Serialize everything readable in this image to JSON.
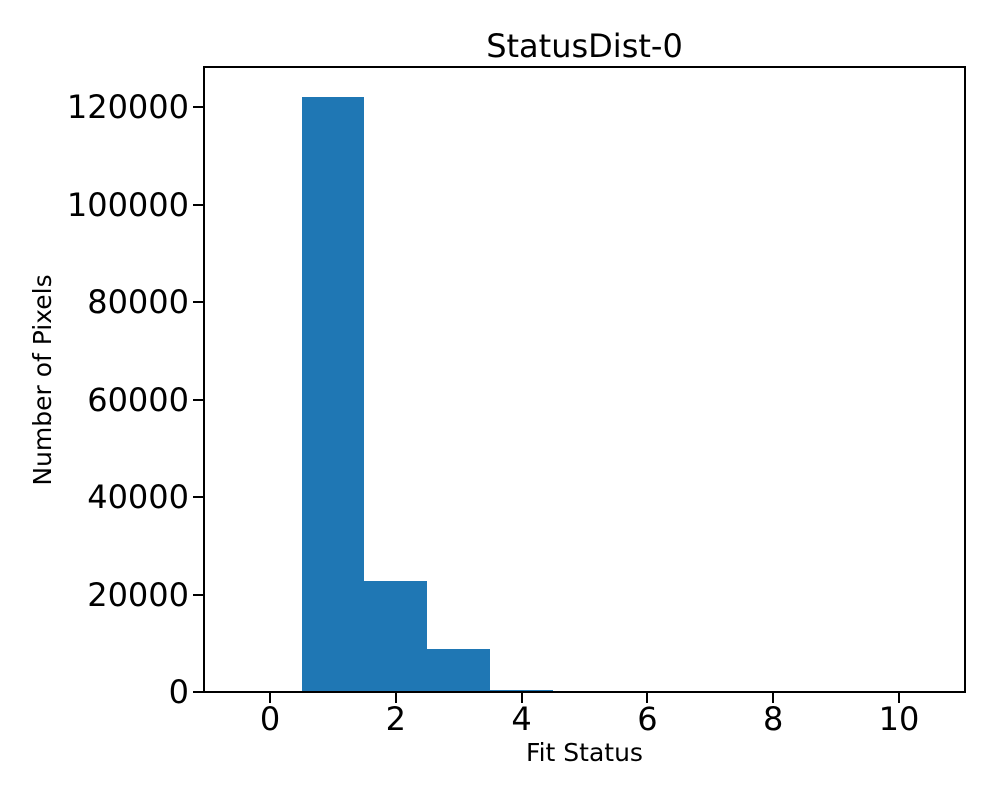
{
  "figure": {
    "background": "#ffffff",
    "text_color": "#000000"
  },
  "chart_data": {
    "type": "bar",
    "subtype": "histogram",
    "title": "StatusDist-0",
    "xlabel": "Fit Status",
    "ylabel": "Number of Pixels",
    "bar_color": "#1f77b4",
    "bin_edges": [
      -0.5,
      0.5,
      1.5,
      2.5,
      3.5,
      4.5,
      5.5,
      6.5,
      7.5,
      8.5,
      9.5,
      10.5
    ],
    "bin_centers": [
      0,
      1,
      2,
      3,
      4,
      5,
      6,
      7,
      8,
      9,
      10
    ],
    "values": [
      0,
      122000,
      22800,
      8800,
      500,
      0,
      0,
      0,
      0,
      0,
      0
    ],
    "xticks": [
      0,
      2,
      4,
      6,
      8,
      10
    ],
    "yticks": [
      0,
      20000,
      40000,
      60000,
      80000,
      100000,
      120000
    ],
    "xlim": [
      -1.05,
      11.05
    ],
    "ylim": [
      0,
      128200
    ],
    "grid": false,
    "legend": null
  }
}
